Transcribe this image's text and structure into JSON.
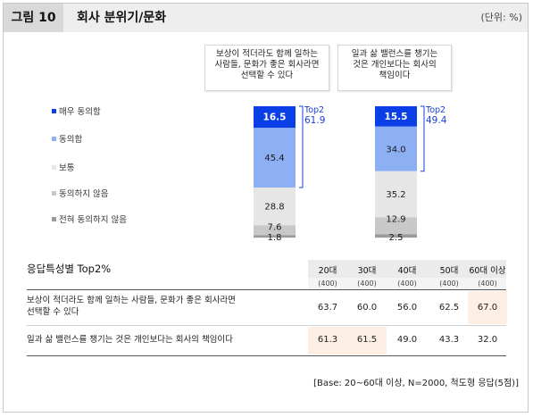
{
  "figure": {
    "label": "그림 10",
    "title": "회사 분위기/문화",
    "unit": "(단위: %)"
  },
  "colors": {
    "very_agree": "#0a3fe5",
    "agree": "#8db0f5",
    "neutral": "#e6e6e6",
    "disagree": "#c8c8c8",
    "strong_disagree": "#9a9a9a",
    "top2": "#1a3fd6",
    "highlight": "#fdefe3"
  },
  "chart_data": {
    "type": "bar",
    "stacked": true,
    "categories": [
      "보상이 적더라도 함께 일하는 사람들, 문화가 좋은 회사라면 선택할 수 있다",
      "일과 삶 밸런스를 챙기는 것은 개인보다는 회사의 책임이다"
    ],
    "category_lines": [
      [
        "보상이 적더라도 함께 일하는",
        "사람들, 문화가 좋은 회사라면",
        "선택할 수 있다"
      ],
      [
        "일과 삶 밸런스를 챙기는",
        "것은 개인보다는 회사의",
        "책임이다"
      ]
    ],
    "series": [
      {
        "name": "매우 동의함",
        "values": [
          16.5,
          15.5
        ]
      },
      {
        "name": "동의함",
        "values": [
          45.4,
          34.0
        ]
      },
      {
        "name": "보통",
        "values": [
          28.8,
          35.2
        ]
      },
      {
        "name": "동의하지 않음",
        "values": [
          7.6,
          12.9
        ]
      },
      {
        "name": "전혀 동의하지 않음",
        "values": [
          1.8,
          2.5
        ]
      }
    ],
    "top2": {
      "label": "Top2",
      "values": [
        61.9,
        49.4
      ]
    },
    "legend_position": "left"
  },
  "table": {
    "title": "응답특성별 Top2%",
    "columns": [
      "20대",
      "30대",
      "40대",
      "50대",
      "60대 이상"
    ],
    "counts": [
      "(400)",
      "(400)",
      "(400)",
      "(400)",
      "(400)"
    ],
    "rows": [
      {
        "label_lines": [
          "보상이 적더라도 함께 일하는 사람들, 문화가 좋은 회사라면",
          "선택할 수 있다"
        ],
        "values": [
          "63.7",
          "60.0",
          "56.0",
          "62.5",
          "67.0"
        ],
        "highlight": [
          false,
          false,
          false,
          false,
          true
        ]
      },
      {
        "label_lines": [
          "일과 삶 밸런스를 챙기는 것은 개인보다는 회사의 책임이다"
        ],
        "values": [
          "61.3",
          "61.5",
          "49.0",
          "43.3",
          "32.0"
        ],
        "highlight": [
          true,
          true,
          false,
          false,
          false
        ]
      }
    ]
  },
  "base_note": "[Base: 20~60대 이상, N=2000, 척도형 응답(5점)]"
}
